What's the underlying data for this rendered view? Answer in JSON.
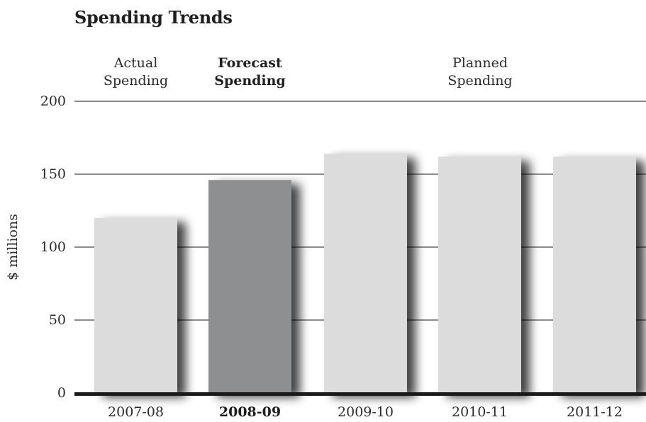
{
  "chart_data": {
    "type": "bar",
    "title": "Spending Trends",
    "ylabel": "$ millions",
    "xlabel": "",
    "ylim": [
      0,
      200
    ],
    "y_ticks": [
      0,
      50,
      100,
      150,
      200
    ],
    "grid": true,
    "categories": [
      "2007-08",
      "2008-09",
      "2009-10",
      "2010-11",
      "2011-12"
    ],
    "values": [
      120,
      146,
      164,
      162,
      162
    ],
    "highlight_index": 1,
    "colors": {
      "bar": "#dcdcdd",
      "highlight_bar": "#8e8f91",
      "baseline": "#1a1a1a",
      "gridline": "#1a1a1a"
    },
    "group_labels": [
      {
        "lines": [
          "Actual",
          "Spending"
        ],
        "bold": false,
        "covers": [
          0
        ]
      },
      {
        "lines": [
          "Forecast",
          "Spending"
        ],
        "bold": true,
        "covers": [
          1
        ]
      },
      {
        "lines": [
          "Planned",
          "Spending"
        ],
        "bold": false,
        "covers": [
          2,
          3,
          4
        ]
      }
    ]
  }
}
